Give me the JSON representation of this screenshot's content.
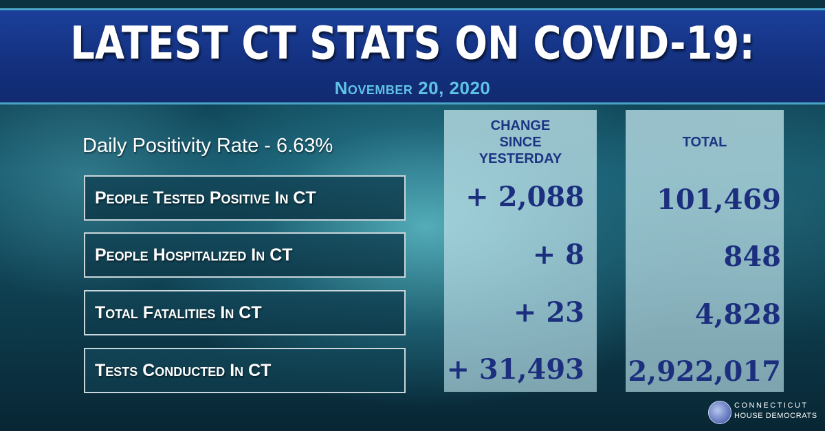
{
  "header": {
    "title": "LATEST CT STATS ON COVID-19:",
    "date": "November 20, 2020"
  },
  "positivity": "Daily Positivity Rate - 6.63%",
  "columns": {
    "change_line1": "CHANGE",
    "change_line2": "SINCE",
    "change_line3": "YESTERDAY",
    "total": "TOTAL"
  },
  "rows": [
    {
      "label": "People Tested Positive In CT",
      "change": "+ 2,088",
      "total": "101,469"
    },
    {
      "label": "People Hospitalized In CT",
      "change": "+ 8",
      "total": "848"
    },
    {
      "label": "Total Fatalities In CT",
      "change": "+ 23",
      "total": "4,828"
    },
    {
      "label": "Tests Conducted In CT",
      "change": "+ 31,493",
      "total": "2,922,017"
    }
  ],
  "logo": {
    "line1": "CONNECTICUT",
    "line2": "HOUSE DEMOCRATS",
    "icon": "state-seal-icon"
  },
  "colors": {
    "header_blue": "#14307e",
    "accent_cyan": "#5fc3e6",
    "value_navy": "#1c2f7e"
  }
}
